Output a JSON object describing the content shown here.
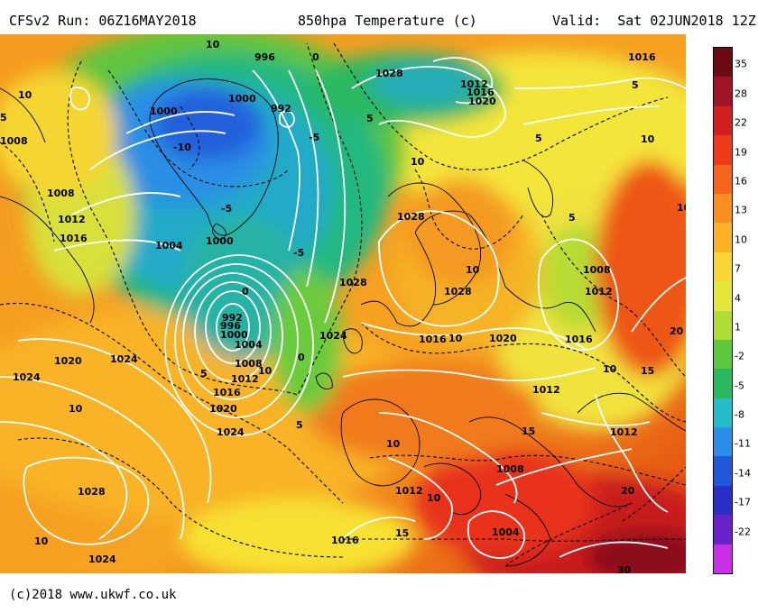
{
  "header": {
    "run": "CFSv2 Run: 06Z16MAY2018",
    "title": "850hpa Temperature (c)",
    "valid": "Valid:  Sat 02JUN2018 12Z"
  },
  "footer": {
    "credit": "(c)2018 www.ukwf.co.uk"
  },
  "colorbar": {
    "ticks": [
      "35",
      "28",
      "22",
      "19",
      "16",
      "13",
      "10",
      "7",
      "4",
      "1",
      "-2",
      "-5",
      "-8",
      "-11",
      "-14",
      "-17",
      "-22"
    ],
    "colors": [
      "#6b0a14",
      "#a01428",
      "#d2201e",
      "#ee3a16",
      "#f4641a",
      "#f88e1e",
      "#fbb325",
      "#fad634",
      "#e3e53a",
      "#b0dc34",
      "#5dc83c",
      "#29b85e",
      "#24bcc8",
      "#2a8fe8",
      "#2358da",
      "#2a2ec8",
      "#6a22cc",
      "#c830e8"
    ]
  },
  "map": {
    "pressure_labels": [
      "996",
      "992",
      "1028",
      "1012",
      "1016",
      "1020",
      "1016",
      "1000",
      "1000",
      "1008",
      "1008",
      "1012",
      "1016",
      "1004",
      "1000",
      "1028",
      "1028",
      "1008",
      "1012",
      "0",
      "992",
      "996",
      "1000",
      "1004",
      "1008",
      "1012",
      "1016",
      "1020",
      "1024",
      "1028",
      "1024",
      "1016",
      "1020",
      "1016",
      "1024",
      "1020",
      "1024",
      "1012",
      "1012",
      "1008",
      "1012",
      "1028",
      "1024",
      "1004",
      "1016"
    ],
    "temp_labels": [
      "10",
      "10",
      "5",
      "-10",
      "0",
      "-5",
      "5",
      "-5",
      "10",
      "5",
      "5",
      "10",
      "10",
      "10",
      "5",
      "10",
      "20",
      "15",
      "10",
      "15",
      "20",
      "10",
      "15",
      "10",
      "-5",
      "0",
      "5",
      "10",
      "10",
      "10",
      "30",
      "5"
    ]
  }
}
